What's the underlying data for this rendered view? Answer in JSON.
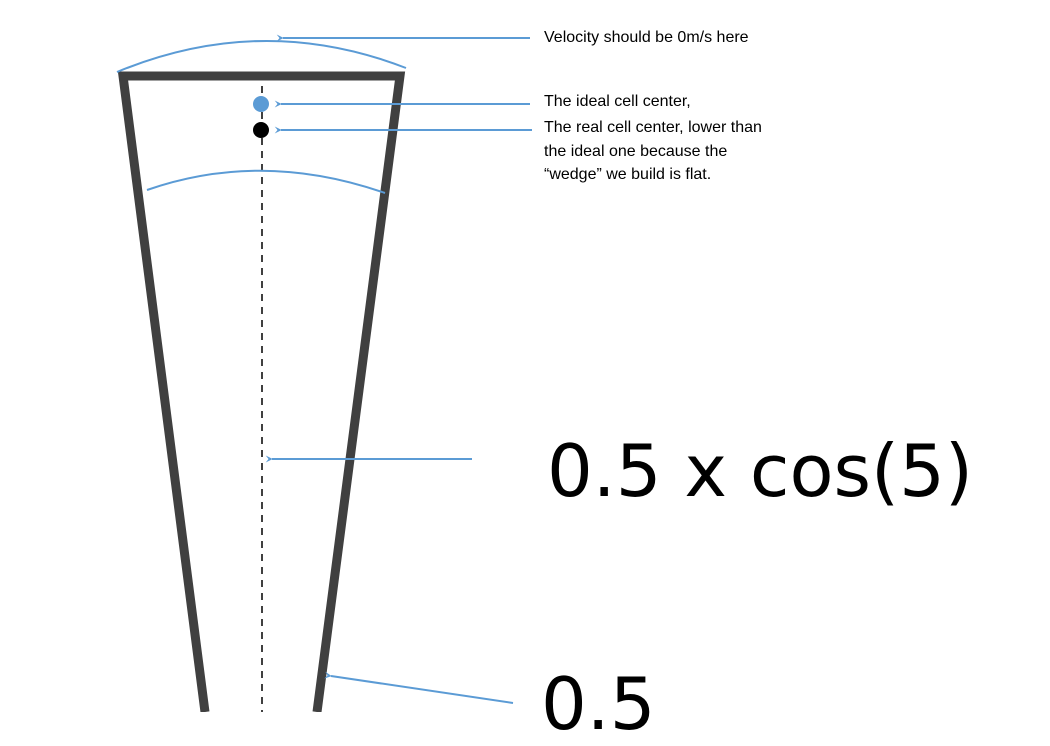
{
  "labels": {
    "velocity": "Velocity should be 0m/s here",
    "ideal_center": "The ideal cell center,",
    "real_center_line1": "The real cell center, lower than",
    "real_center_line2": "the ideal one because the",
    "real_center_line3": "“wedge” we build is flat.",
    "formula_cos": "0.5 x cos(5)",
    "formula_half": "0.5"
  },
  "colors": {
    "wedge_outline": "#404040",
    "accent_arrow": "#5b9bd5",
    "ideal_dot": "#5b9bd5",
    "real_dot": "#000000",
    "text": "#000000"
  }
}
